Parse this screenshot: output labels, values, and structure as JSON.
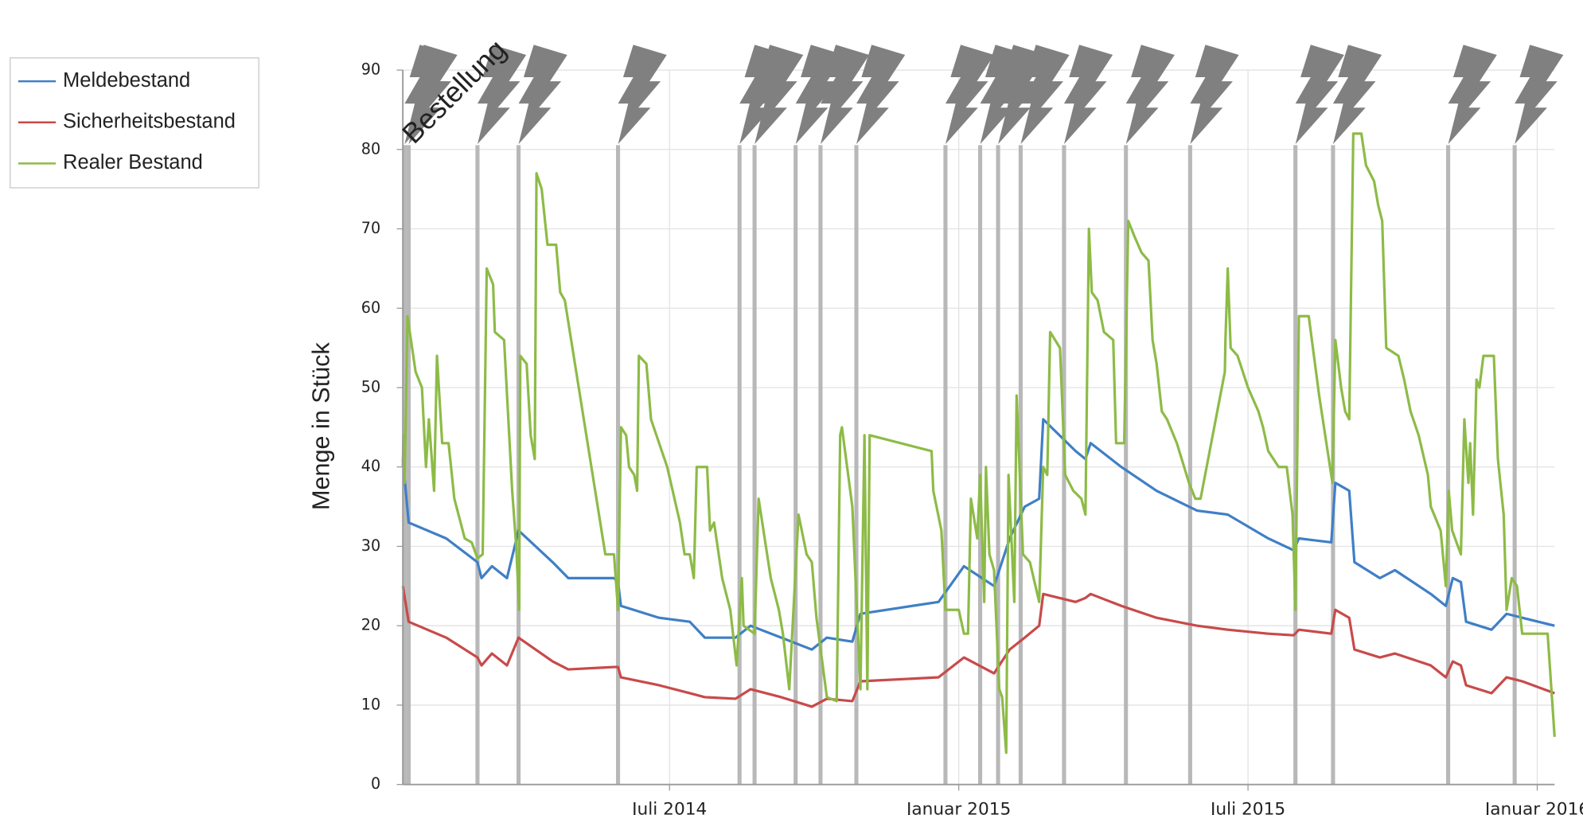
{
  "chart_data": {
    "type": "line",
    "y_label": "Menge in Stück",
    "annotation": "Bestellung",
    "xlim": [
      2014.039,
      2016.03
    ],
    "xticks": [
      {
        "value": 2014.5,
        "label": "Juli 2014"
      },
      {
        "value": 2015.0,
        "label": "Januar 2015"
      },
      {
        "value": 2015.5,
        "label": "Juli 2015"
      },
      {
        "value": 2016.0,
        "label": "Januar 2016"
      }
    ],
    "ylim": [
      0,
      90
    ],
    "yticks": [
      0,
      10,
      20,
      30,
      40,
      50,
      60,
      70,
      80,
      90
    ],
    "grid": true,
    "legend": "top-left",
    "orders": {
      "color": "#b8b8b8",
      "x": [
        2014.042,
        2014.049,
        2014.168,
        2014.239,
        2014.411,
        2014.621,
        2014.647,
        2014.718,
        2014.761,
        2014.823,
        2014.977,
        2015.037,
        2015.068,
        2015.107,
        2015.182,
        2015.289,
        2015.4,
        2015.582,
        2015.647,
        2015.846,
        2015.961
      ]
    },
    "series": [
      {
        "name": "Meldebestand",
        "color": "#3f7fc6",
        "x": [
          2014.039,
          2014.049,
          2014.114,
          2014.168,
          2014.175,
          2014.193,
          2014.219,
          2014.239,
          2014.298,
          2014.325,
          2014.404,
          2014.411,
          2014.416,
          2014.482,
          2014.535,
          2014.561,
          2014.614,
          2014.64,
          2014.693,
          2014.746,
          2014.772,
          2014.816,
          2014.83,
          2014.965,
          2015.009,
          2015.061,
          2015.088,
          2015.114,
          2015.139,
          2015.146,
          2015.202,
          2015.219,
          2015.228,
          2015.281,
          2015.342,
          2015.412,
          2015.465,
          2015.535,
          2015.579,
          2015.588,
          2015.644,
          2015.651,
          2015.675,
          2015.684,
          2015.728,
          2015.754,
          2015.816,
          2015.842,
          2015.854,
          2015.868,
          2015.877,
          2015.921,
          2015.947,
          2015.974,
          2016.03
        ],
        "values": [
          41,
          33,
          31,
          28,
          26,
          27.5,
          26,
          32,
          28,
          26,
          26,
          25.5,
          22.5,
          21,
          20.5,
          18.5,
          18.5,
          20,
          18.5,
          17,
          18.5,
          18,
          21.5,
          23,
          27.5,
          25,
          31,
          35,
          36,
          46,
          42,
          41,
          43,
          40,
          37,
          34.5,
          34,
          31,
          29.5,
          31,
          30.5,
          38,
          37,
          28,
          26,
          27,
          24,
          22.5,
          26,
          25.5,
          20.5,
          19.5,
          21.5,
          21,
          20
        ]
      },
      {
        "name": "Sicherheitsbestand",
        "color": "#c84a4a",
        "x": [
          2014.039,
          2014.049,
          2014.114,
          2014.168,
          2014.175,
          2014.193,
          2014.219,
          2014.239,
          2014.298,
          2014.325,
          2014.404,
          2014.411,
          2014.416,
          2014.482,
          2014.535,
          2014.561,
          2014.614,
          2014.64,
          2014.693,
          2014.746,
          2014.772,
          2014.816,
          2014.83,
          2014.965,
          2015.009,
          2015.061,
          2015.088,
          2015.114,
          2015.139,
          2015.146,
          2015.202,
          2015.219,
          2015.228,
          2015.281,
          2015.342,
          2015.412,
          2015.465,
          2015.535,
          2015.579,
          2015.588,
          2015.644,
          2015.651,
          2015.675,
          2015.684,
          2015.728,
          2015.754,
          2015.816,
          2015.842,
          2015.854,
          2015.868,
          2015.877,
          2015.921,
          2015.947,
          2015.974,
          2016.03
        ],
        "values": [
          25,
          20.5,
          18.5,
          16,
          15,
          16.5,
          15,
          18.5,
          15.5,
          14.5,
          14.8,
          14.8,
          13.5,
          12.5,
          11.5,
          11,
          10.8,
          12,
          11,
          9.8,
          10.8,
          10.5,
          13,
          13.5,
          16,
          14,
          17,
          18.5,
          20,
          24,
          23,
          23.5,
          24,
          22.5,
          21,
          20,
          19.5,
          19,
          18.8,
          19.5,
          19,
          22,
          21,
          17,
          16,
          16.5,
          15,
          13.5,
          15.5,
          15,
          12.5,
          11.5,
          13.5,
          13,
          11.5
        ]
      },
      {
        "name": "Realer Bestand",
        "color": "#8dbb47",
        "x": [
          2014.039,
          2014.04,
          2014.042,
          2014.047,
          2014.061,
          2014.072,
          2014.079,
          2014.084,
          2014.093,
          2014.098,
          2014.107,
          2014.118,
          2014.128,
          2014.146,
          2014.158,
          2014.168,
          2014.177,
          2014.184,
          2014.195,
          2014.198,
          2014.214,
          2014.228,
          2014.235,
          2014.24,
          2014.242,
          2014.253,
          2014.26,
          2014.267,
          2014.27,
          2014.279,
          2014.289,
          2014.304,
          2014.311,
          2014.319,
          2014.389,
          2014.404,
          2014.411,
          2014.416,
          2014.425,
          2014.43,
          2014.439,
          2014.444,
          2014.447,
          2014.46,
          2014.468,
          2014.496,
          2014.518,
          2014.526,
          2014.535,
          2014.542,
          2014.547,
          2014.565,
          2014.57,
          2014.577,
          2014.591,
          2014.605,
          2014.616,
          2014.625,
          2014.628,
          2014.647,
          2014.654,
          2014.675,
          2014.689,
          2014.696,
          2014.707,
          2014.723,
          2014.737,
          2014.746,
          2014.754,
          2014.772,
          2014.789,
          2014.795,
          2014.798,
          2014.807,
          2014.816,
          2014.83,
          2014.837,
          2014.842,
          2014.846,
          2014.953,
          2014.956,
          2014.97,
          2014.977,
          2015.0,
          2015.009,
          2015.016,
          2015.021,
          2015.032,
          2015.037,
          2015.044,
          2015.047,
          2015.053,
          2015.061,
          2015.07,
          2015.075,
          2015.082,
          2015.086,
          2015.091,
          2015.096,
          2015.1,
          2015.111,
          2015.123,
          2015.139,
          2015.146,
          2015.153,
          2015.158,
          2015.175,
          2015.184,
          2015.198,
          2015.212,
          2015.219,
          2015.225,
          2015.23,
          2015.24,
          2015.251,
          2015.267,
          2015.272,
          2015.286,
          2015.293,
          2015.304,
          2015.316,
          2015.328,
          2015.335,
          2015.342,
          2015.351,
          2015.36,
          2015.377,
          2015.398,
          2015.409,
          2015.418,
          2015.46,
          2015.461,
          2015.465,
          2015.47,
          2015.482,
          2015.5,
          2015.518,
          2015.526,
          2015.535,
          2015.553,
          2015.567,
          2015.577,
          2015.582,
          2015.588,
          2015.605,
          2015.623,
          2015.646,
          2015.651,
          2015.661,
          2015.668,
          2015.675,
          2015.682,
          2015.696,
          2015.704,
          2015.718,
          2015.725,
          2015.732,
          2015.739,
          2015.76,
          2015.77,
          2015.781,
          2015.795,
          2015.811,
          2015.816,
          2015.833,
          2015.842,
          2015.847,
          2015.853,
          2015.868,
          2015.874,
          2015.881,
          2015.884,
          2015.889,
          2015.895,
          2015.9,
          2015.907,
          2015.925,
          2015.932,
          2015.942,
          2015.947,
          2015.956,
          2015.965,
          2015.974,
          2016.018,
          2016.03
        ],
        "values": [
          40,
          44,
          38,
          59,
          52,
          50,
          40,
          46,
          37,
          54,
          43,
          43,
          36,
          31,
          30.5,
          28.5,
          29,
          65,
          63,
          57,
          56,
          37,
          30,
          22,
          54,
          53,
          44,
          41,
          77,
          75,
          68,
          68,
          62,
          61,
          29,
          29,
          22,
          45,
          44,
          40,
          39,
          37,
          54,
          53,
          46,
          40,
          33,
          29,
          29,
          26,
          40,
          40,
          32,
          33,
          26,
          22,
          15,
          26,
          20,
          19,
          36,
          26,
          22,
          19,
          12,
          34,
          29,
          28,
          21,
          11,
          10.5,
          44,
          45,
          40,
          35,
          12,
          44,
          12,
          44,
          42,
          37,
          32,
          22,
          22,
          19,
          19,
          36,
          31,
          39,
          23,
          40,
          29,
          27,
          12,
          11,
          4,
          39,
          31,
          23,
          49,
          29,
          28,
          23,
          40,
          39,
          57,
          55,
          39,
          37,
          36,
          34,
          70,
          62,
          61,
          57,
          56,
          43,
          43,
          71,
          69,
          67,
          66,
          56,
          53,
          47,
          46,
          43,
          38,
          36,
          36,
          52,
          56,
          65,
          55,
          54,
          50,
          47,
          45,
          42,
          40,
          40,
          34,
          22,
          59,
          59,
          49,
          38,
          56,
          50,
          47,
          46,
          82,
          82,
          78,
          76,
          73,
          71,
          55,
          54,
          51,
          47,
          44,
          39,
          35,
          32,
          25,
          37,
          32,
          29,
          46,
          38,
          43,
          34,
          51,
          50,
          54,
          54,
          41,
          34,
          22,
          26,
          25,
          19,
          19,
          6
        ]
      }
    ]
  }
}
